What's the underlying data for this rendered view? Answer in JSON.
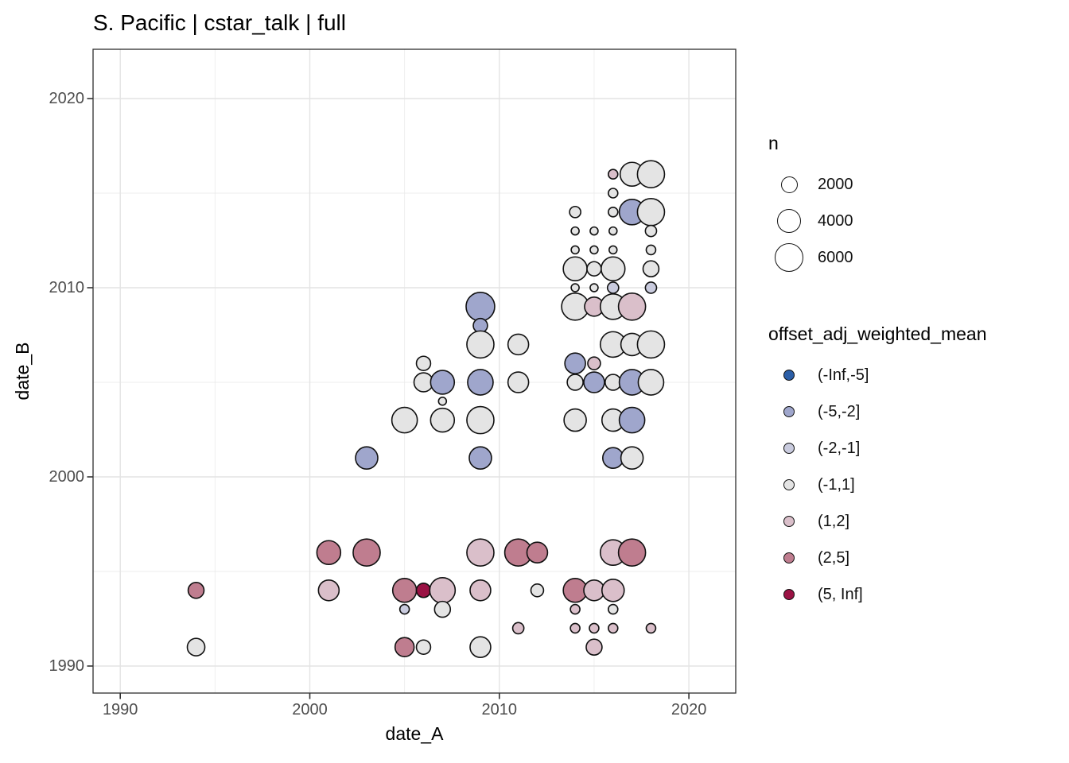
{
  "chart_data": {
    "type": "scatter",
    "title": "S. Pacific | cstar_talk | full",
    "xlabel": "date_A",
    "ylabel": "date_B",
    "grid": true,
    "x_axis": {
      "range": [
        1988.6,
        2022.6
      ],
      "major_ticks": [
        1990,
        2000,
        2010,
        2020
      ],
      "minor_ticks": [
        1995,
        2005,
        2015
      ],
      "tick_labels": [
        "1990",
        "2000",
        "2010",
        "2020"
      ]
    },
    "y_axis": {
      "range": [
        1988.6,
        2022.6
      ],
      "major_ticks": [
        1990,
        2000,
        2010,
        2020
      ],
      "minor_ticks": [
        1995,
        2005,
        2015
      ],
      "tick_labels": [
        "1990",
        "2000",
        "2010",
        "2020"
      ]
    },
    "size_legend": {
      "title": "n",
      "entries": [
        {
          "n": 2000,
          "label": "2000"
        },
        {
          "n": 4000,
          "label": "4000"
        },
        {
          "n": 6000,
          "label": "6000"
        }
      ]
    },
    "color_legend": {
      "title": "offset_adj_weighted_mean",
      "bins": [
        {
          "label": "(-Inf,-5]",
          "color": "#2b5ea7"
        },
        {
          "label": "(-5,-2]",
          "color": "#9fa6cc"
        },
        {
          "label": "(-2,-1]",
          "color": "#c9cbde"
        },
        {
          "label": "(-1,1]",
          "color": "#e4e4e4"
        },
        {
          "label": "(1,2]",
          "color": "#dabfca"
        },
        {
          "label": "(2,5]",
          "color": "#bf7d8f"
        },
        {
          "label": "(5, Inf]",
          "color": "#9a1244"
        }
      ]
    },
    "points": [
      {
        "a": 1994,
        "b": 1994,
        "n": 1800,
        "bin": "(2,5]"
      },
      {
        "a": 1994,
        "b": 1991,
        "n": 2200,
        "bin": "(-1,1]"
      },
      {
        "a": 2001,
        "b": 1996,
        "n": 4050,
        "bin": "(2,5]"
      },
      {
        "a": 2001,
        "b": 1994,
        "n": 3050,
        "bin": "(1,2]"
      },
      {
        "a": 2003,
        "b": 2001,
        "n": 3550,
        "bin": "(-5,-2]"
      },
      {
        "a": 2003,
        "b": 1996,
        "n": 5250,
        "bin": "(2,5]"
      },
      {
        "a": 2005,
        "b": 2003,
        "n": 4650,
        "bin": "(-1,1]"
      },
      {
        "a": 2005,
        "b": 1994,
        "n": 4050,
        "bin": "(2,5]"
      },
      {
        "a": 2005,
        "b": 1993,
        "n": 650,
        "bin": "(-2,-1]"
      },
      {
        "a": 2005,
        "b": 1991,
        "n": 2600,
        "bin": "(2,5]"
      },
      {
        "a": 2006,
        "b": 2006,
        "n": 1450,
        "bin": "(-1,1]"
      },
      {
        "a": 2006,
        "b": 2005,
        "n": 2600,
        "bin": "(-1,1]"
      },
      {
        "a": 2006,
        "b": 1994,
        "n": 1450,
        "bin": "(5, Inf]"
      },
      {
        "a": 2006,
        "b": 1991,
        "n": 1450,
        "bin": "(-1,1]"
      },
      {
        "a": 2007,
        "b": 2005,
        "n": 4050,
        "bin": "(-5,-2]"
      },
      {
        "a": 2007,
        "b": 2004,
        "n": 450,
        "bin": "(-1,1]"
      },
      {
        "a": 2007,
        "b": 2003,
        "n": 4050,
        "bin": "(-1,1]"
      },
      {
        "a": 2007,
        "b": 1994,
        "n": 4650,
        "bin": "(1,2]"
      },
      {
        "a": 2007,
        "b": 1993,
        "n": 1800,
        "bin": "(-1,1]"
      },
      {
        "a": 2009,
        "b": 2009,
        "n": 5850,
        "bin": "(-5,-2]"
      },
      {
        "a": 2009,
        "b": 2008,
        "n": 1450,
        "bin": "(-5,-2]"
      },
      {
        "a": 2009,
        "b": 2007,
        "n": 5250,
        "bin": "(-1,1]"
      },
      {
        "a": 2009,
        "b": 2005,
        "n": 4650,
        "bin": "(-5,-2]"
      },
      {
        "a": 2009,
        "b": 2003,
        "n": 5250,
        "bin": "(-1,1]"
      },
      {
        "a": 2009,
        "b": 2001,
        "n": 3550,
        "bin": "(-5,-2]"
      },
      {
        "a": 2009,
        "b": 1996,
        "n": 5250,
        "bin": "(1,2]"
      },
      {
        "a": 2009,
        "b": 1994,
        "n": 3050,
        "bin": "(1,2]"
      },
      {
        "a": 2009,
        "b": 1991,
        "n": 3050,
        "bin": "(-1,1]"
      },
      {
        "a": 2011,
        "b": 2007,
        "n": 3050,
        "bin": "(-1,1]"
      },
      {
        "a": 2011,
        "b": 2005,
        "n": 3050,
        "bin": "(-1,1]"
      },
      {
        "a": 2011,
        "b": 1996,
        "n": 5250,
        "bin": "(2,5]"
      },
      {
        "a": 2011,
        "b": 1992,
        "n": 900,
        "bin": "(1,2]"
      },
      {
        "a": 2012,
        "b": 1996,
        "n": 3050,
        "bin": "(2,5]"
      },
      {
        "a": 2012,
        "b": 1994,
        "n": 1150,
        "bin": "(-1,1]"
      },
      {
        "a": 2014,
        "b": 2014,
        "n": 900,
        "bin": "(-1,1]"
      },
      {
        "a": 2014,
        "b": 2013,
        "n": 450,
        "bin": "(-1,1]"
      },
      {
        "a": 2014,
        "b": 2012,
        "n": 450,
        "bin": "(-1,1]"
      },
      {
        "a": 2014,
        "b": 2011,
        "n": 4050,
        "bin": "(-1,1]"
      },
      {
        "a": 2014,
        "b": 2010,
        "n": 450,
        "bin": "(-1,1]"
      },
      {
        "a": 2014,
        "b": 2009,
        "n": 5250,
        "bin": "(-1,1]"
      },
      {
        "a": 2014,
        "b": 2006,
        "n": 3050,
        "bin": "(-5,-2]"
      },
      {
        "a": 2014,
        "b": 2005,
        "n": 1800,
        "bin": "(-1,1]"
      },
      {
        "a": 2014,
        "b": 2003,
        "n": 3550,
        "bin": "(-1,1]"
      },
      {
        "a": 2014,
        "b": 1994,
        "n": 4050,
        "bin": "(2,5]"
      },
      {
        "a": 2014,
        "b": 1993,
        "n": 650,
        "bin": "(1,2]"
      },
      {
        "a": 2014,
        "b": 1992,
        "n": 650,
        "bin": "(1,2]"
      },
      {
        "a": 2015,
        "b": 2013,
        "n": 450,
        "bin": "(-1,1]"
      },
      {
        "a": 2015,
        "b": 2012,
        "n": 450,
        "bin": "(-1,1]"
      },
      {
        "a": 2015,
        "b": 2011,
        "n": 1450,
        "bin": "(-1,1]"
      },
      {
        "a": 2015,
        "b": 2010,
        "n": 450,
        "bin": "(-1,1]"
      },
      {
        "a": 2015,
        "b": 2009,
        "n": 2600,
        "bin": "(1,2]"
      },
      {
        "a": 2015,
        "b": 2006,
        "n": 1150,
        "bin": "(1,2]"
      },
      {
        "a": 2015,
        "b": 2005,
        "n": 3050,
        "bin": "(-5,-2]"
      },
      {
        "a": 2015,
        "b": 1994,
        "n": 3050,
        "bin": "(1,2]"
      },
      {
        "a": 2015,
        "b": 1992,
        "n": 650,
        "bin": "(1,2]"
      },
      {
        "a": 2015,
        "b": 1991,
        "n": 1800,
        "bin": "(1,2]"
      },
      {
        "a": 2016,
        "b": 2016,
        "n": 650,
        "bin": "(1,2]"
      },
      {
        "a": 2016,
        "b": 2015,
        "n": 650,
        "bin": "(-1,1]"
      },
      {
        "a": 2016,
        "b": 2014,
        "n": 650,
        "bin": "(-1,1]"
      },
      {
        "a": 2016,
        "b": 2013,
        "n": 450,
        "bin": "(-1,1]"
      },
      {
        "a": 2016,
        "b": 2012,
        "n": 450,
        "bin": "(-1,1]"
      },
      {
        "a": 2016,
        "b": 2011,
        "n": 4050,
        "bin": "(-1,1]"
      },
      {
        "a": 2016,
        "b": 2010,
        "n": 900,
        "bin": "(-2,-1]"
      },
      {
        "a": 2016,
        "b": 2009,
        "n": 4650,
        "bin": "(-1,1]"
      },
      {
        "a": 2016,
        "b": 2007,
        "n": 4650,
        "bin": "(-1,1]"
      },
      {
        "a": 2016,
        "b": 2005,
        "n": 1800,
        "bin": "(-1,1]"
      },
      {
        "a": 2016,
        "b": 2003,
        "n": 3550,
        "bin": "(-1,1]"
      },
      {
        "a": 2016,
        "b": 2001,
        "n": 3050,
        "bin": "(-5,-2]"
      },
      {
        "a": 2016,
        "b": 1996,
        "n": 4650,
        "bin": "(1,2]"
      },
      {
        "a": 2016,
        "b": 1994,
        "n": 3550,
        "bin": "(1,2]"
      },
      {
        "a": 2016,
        "b": 1993,
        "n": 650,
        "bin": "(-1,1]"
      },
      {
        "a": 2016,
        "b": 1992,
        "n": 650,
        "bin": "(1,2]"
      },
      {
        "a": 2017,
        "b": 2016,
        "n": 4050,
        "bin": "(-1,1]"
      },
      {
        "a": 2017,
        "b": 2014,
        "n": 4650,
        "bin": "(-5,-2]"
      },
      {
        "a": 2017,
        "b": 2009,
        "n": 5250,
        "bin": "(1,2]"
      },
      {
        "a": 2017,
        "b": 2007,
        "n": 3550,
        "bin": "(-1,1]"
      },
      {
        "a": 2017,
        "b": 2005,
        "n": 4650,
        "bin": "(-5,-2]"
      },
      {
        "a": 2017,
        "b": 2003,
        "n": 4650,
        "bin": "(-5,-2]"
      },
      {
        "a": 2017,
        "b": 2001,
        "n": 3550,
        "bin": "(-1,1]"
      },
      {
        "a": 2017,
        "b": 1996,
        "n": 5250,
        "bin": "(2,5]"
      },
      {
        "a": 2018,
        "b": 2016,
        "n": 5250,
        "bin": "(-1,1]"
      },
      {
        "a": 2018,
        "b": 2014,
        "n": 5250,
        "bin": "(-1,1]"
      },
      {
        "a": 2018,
        "b": 2013,
        "n": 900,
        "bin": "(-1,1]"
      },
      {
        "a": 2018,
        "b": 2012,
        "n": 650,
        "bin": "(-1,1]"
      },
      {
        "a": 2018,
        "b": 2011,
        "n": 1800,
        "bin": "(-1,1]"
      },
      {
        "a": 2018,
        "b": 2010,
        "n": 900,
        "bin": "(-2,-1]"
      },
      {
        "a": 2018,
        "b": 2007,
        "n": 5250,
        "bin": "(-1,1]"
      },
      {
        "a": 2018,
        "b": 2005,
        "n": 4650,
        "bin": "(-1,1]"
      },
      {
        "a": 2018,
        "b": 1992,
        "n": 650,
        "bin": "(1,2]"
      }
    ],
    "style": {
      "point_stroke": "#111111",
      "panel_border": "#2e2e2e",
      "grid_major": "#e4e4e4",
      "grid_minor": "#ececec",
      "tick_color": "#333333",
      "tick_text_color": "#4d4d4d"
    }
  }
}
